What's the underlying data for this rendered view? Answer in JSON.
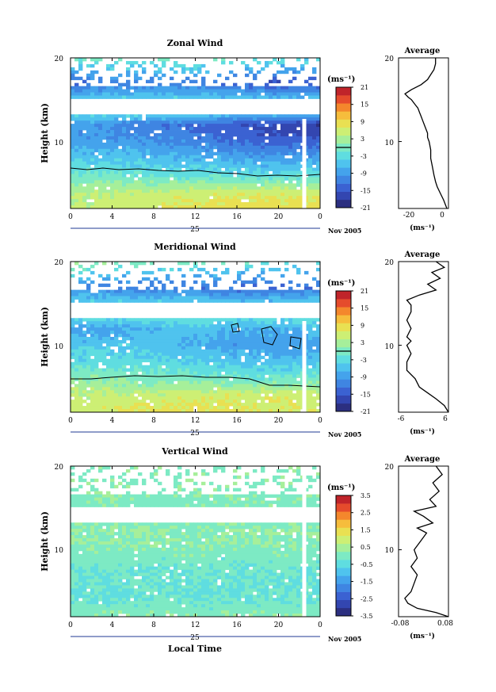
{
  "colors": {
    "scale": [
      "#2c2f80",
      "#3346b0",
      "#3b62d2",
      "#3f85e2",
      "#44a3ec",
      "#4fc3ee",
      "#5fdde0",
      "#7deac4",
      "#a6ef9a",
      "#cdef74",
      "#e9e052",
      "#f6bd3c",
      "#f4872c",
      "#e54b2c",
      "#c0242a"
    ],
    "line": "#1f3a93"
  },
  "x_axis": {
    "ticks": [
      "0",
      "4",
      "8",
      "12",
      "16",
      "20",
      "0"
    ],
    "day_label": "25",
    "month_label": "Nov 2005",
    "xlabel": "Local Time"
  },
  "panels": [
    {
      "title": "Zonal Wind",
      "ylabel": "Height (km)",
      "yticks": [
        "20",
        "10"
      ],
      "unit": "(ms⁻¹)",
      "colorbar_ticks": [
        "21",
        "15",
        "9",
        "3",
        "-3",
        "-9",
        "-15",
        "-21"
      ],
      "avg_title": "Average",
      "avg_xticks": [
        "-20",
        "0"
      ],
      "avg_unit": "(ms⁻¹)"
    },
    {
      "title": "Meridional Wind",
      "ylabel": "Height (km)",
      "yticks": [
        "20",
        "10"
      ],
      "unit": "(ms⁻¹)",
      "colorbar_ticks": [
        "21",
        "15",
        "9",
        "3",
        "-3",
        "-9",
        "-15",
        "-21"
      ],
      "avg_title": "Average",
      "avg_xticks": [
        "-6",
        "6"
      ],
      "avg_unit": "(ms⁻¹)"
    },
    {
      "title": "Vertical Wind",
      "ylabel": "Height (km)",
      "yticks": [
        "20",
        "10"
      ],
      "unit": "(ms⁻¹)",
      "colorbar_ticks": [
        "3.5",
        "2.5",
        "1.5",
        "0.5",
        "-0.5",
        "-1.5",
        "-2.5",
        "-3.5"
      ],
      "avg_title": "Average",
      "avg_xticks": [
        "-0.08",
        "0.08"
      ],
      "avg_unit": "(ms⁻¹)"
    }
  ],
  "chart_data": [
    {
      "type": "heatmap",
      "title": "Zonal Wind",
      "xlabel": "Local Time",
      "ylabel": "Height (km)",
      "xlim": [
        0,
        24
      ],
      "ylim": [
        2,
        20
      ],
      "clim": [
        -21,
        21
      ],
      "colorbar_ticks": [
        21,
        15,
        9,
        3,
        -3,
        -9,
        -15,
        -21
      ],
      "x": [
        0,
        4,
        8,
        12,
        16,
        20,
        24
      ],
      "heights": [
        20,
        17,
        14,
        12,
        10,
        8,
        6,
        4,
        2
      ],
      "values": [
        [
          0,
          0,
          0,
          0,
          0,
          -2,
          -3
        ],
        [
          -14,
          -12,
          -12,
          -12,
          -14,
          -16,
          -15
        ],
        [
          0,
          0,
          0,
          0,
          0,
          0,
          0
        ],
        [
          -8,
          -10,
          -12,
          -13,
          -15,
          -17,
          -18
        ],
        [
          -9,
          -9,
          -10,
          -11,
          -13,
          -14,
          -14
        ],
        [
          -5,
          -5,
          -6,
          -7,
          -8,
          -9,
          -8
        ],
        [
          -1,
          -1,
          -2,
          -2,
          -3,
          -3,
          -2
        ],
        [
          4,
          4,
          5,
          5,
          6,
          6,
          5
        ],
        [
          5,
          6,
          7,
          8,
          9,
          9,
          8
        ]
      ]
    },
    {
      "type": "line",
      "title": "Average",
      "xlabel": "(ms⁻¹)",
      "ylabel": "",
      "xlim": [
        -28,
        3
      ],
      "ylim": [
        2,
        20
      ],
      "series": [
        {
          "x": [
            2,
            0,
            -2,
            -4,
            -5,
            -6,
            -7,
            -8,
            -8,
            -9,
            -10,
            -10,
            -12,
            -13,
            -14,
            -15,
            -16,
            -18,
            -20,
            -22,
            -24,
            -20,
            -14,
            -10,
            -8,
            -6,
            -5,
            -5
          ],
          "y": [
            2,
            3,
            3.8,
            4.6,
            5.2,
            6,
            7,
            8,
            9,
            10,
            10.5,
            11,
            12,
            12.5,
            13,
            13.5,
            14,
            14.5,
            15,
            15.3,
            15.7,
            16.2,
            16.8,
            17.4,
            18,
            18.6,
            19.3,
            20
          ]
        }
      ]
    },
    {
      "type": "heatmap",
      "title": "Meridional Wind",
      "xlabel": "Local Time",
      "ylabel": "Height (km)",
      "xlim": [
        0,
        24
      ],
      "ylim": [
        2,
        20
      ],
      "clim": [
        -21,
        21
      ],
      "colorbar_ticks": [
        21,
        15,
        9,
        3,
        -3,
        -9,
        -15,
        -21
      ],
      "x": [
        0,
        4,
        8,
        12,
        16,
        20,
        24
      ],
      "heights": [
        20,
        17,
        14,
        12,
        10,
        8,
        6,
        4,
        2
      ],
      "values": [
        [
          3,
          2,
          0,
          0,
          0,
          -2,
          -2
        ],
        [
          -10,
          -12,
          -12,
          -12,
          -14,
          -14,
          -13
        ],
        [
          0,
          0,
          0,
          0,
          0,
          0,
          0
        ],
        [
          -9,
          -8,
          -6,
          -5,
          -7,
          -7,
          -6
        ],
        [
          -5,
          -5,
          -6,
          -7,
          -9,
          -9,
          -8
        ],
        [
          -3,
          -3,
          -3,
          -4,
          -5,
          -6,
          -5
        ],
        [
          1,
          1,
          0,
          0,
          -1,
          -1,
          0
        ],
        [
          5,
          5,
          5,
          6,
          6,
          6,
          5
        ],
        [
          6,
          7,
          8,
          8,
          8,
          7,
          7
        ]
      ]
    },
    {
      "type": "line",
      "title": "Average",
      "xlabel": "(ms⁻¹)",
      "ylabel": "",
      "xlim": [
        -6,
        6
      ],
      "ylim": [
        2,
        20
      ],
      "series": [
        {
          "x": [
            6,
            5,
            3,
            1,
            -1,
            -2,
            -4,
            -4,
            -3,
            -4,
            -3,
            -4,
            -3,
            -4,
            -3,
            -3,
            -4,
            -1,
            3,
            1,
            4,
            2,
            5,
            3
          ],
          "y": [
            2,
            2.8,
            3.6,
            4.3,
            5,
            6,
            7,
            8,
            9,
            10,
            10.5,
            11,
            12,
            13,
            14,
            14.8,
            15.4,
            16,
            16.6,
            17.3,
            18,
            18.7,
            19.3,
            20
          ]
        }
      ]
    },
    {
      "type": "heatmap",
      "title": "Vertical Wind",
      "xlabel": "Local Time",
      "ylabel": "Height (km)",
      "xlim": [
        0,
        24
      ],
      "ylim": [
        2,
        20
      ],
      "clim": [
        -3.5,
        3.5
      ],
      "colorbar_ticks": [
        3.5,
        2.5,
        1.5,
        0.5,
        -0.5,
        -1.5,
        -2.5,
        -3.5
      ],
      "x": [
        0,
        4,
        8,
        12,
        16,
        20,
        24
      ],
      "heights": [
        20,
        17,
        14,
        12,
        10,
        8,
        6,
        4,
        2
      ],
      "values": [
        [
          0.2,
          0.1,
          0.2,
          0.1,
          0.2,
          0.1,
          0.2
        ],
        [
          0.1,
          0.2,
          0.1,
          0.2,
          0.1,
          0.2,
          0.1
        ],
        [
          0,
          0,
          0,
          0,
          0,
          0,
          0
        ],
        [
          0.3,
          0.2,
          0.3,
          0.2,
          0.3,
          0.2,
          0.3
        ],
        [
          0.1,
          0.2,
          0.1,
          0.2,
          0.1,
          0.2,
          0.1
        ],
        [
          -0.2,
          -0.1,
          -0.2,
          -0.1,
          -0.2,
          -0.1,
          -0.2
        ],
        [
          -0.3,
          -0.3,
          -0.2,
          -0.3,
          -0.2,
          -0.3,
          -0.3
        ],
        [
          -0.2,
          -0.3,
          -0.2,
          -0.2,
          -0.3,
          -0.2,
          -0.2
        ],
        [
          0.1,
          0.2,
          0.2,
          0.1,
          0.2,
          0.2,
          0.1
        ]
      ]
    },
    {
      "type": "line",
      "title": "Average",
      "xlabel": "(ms⁻¹)",
      "ylabel": "",
      "xlim": [
        -0.08,
        0.08
      ],
      "ylim": [
        2,
        20
      ],
      "series": [
        {
          "x": [
            0.08,
            0.04,
            -0.02,
            -0.05,
            -0.06,
            -0.04,
            -0.03,
            -0.02,
            -0.04,
            -0.02,
            -0.03,
            -0.01,
            0.01,
            -0.02,
            0.03,
            0.0,
            -0.03,
            0.04,
            0.02,
            0.05,
            0.03,
            0.06,
            0.04
          ],
          "y": [
            2,
            2.5,
            3,
            3.6,
            4.2,
            5,
            6,
            7,
            8,
            9,
            10,
            11,
            12,
            12.6,
            13.2,
            14,
            14.6,
            15.2,
            16,
            17,
            18,
            19,
            20
          ]
        }
      ]
    }
  ]
}
